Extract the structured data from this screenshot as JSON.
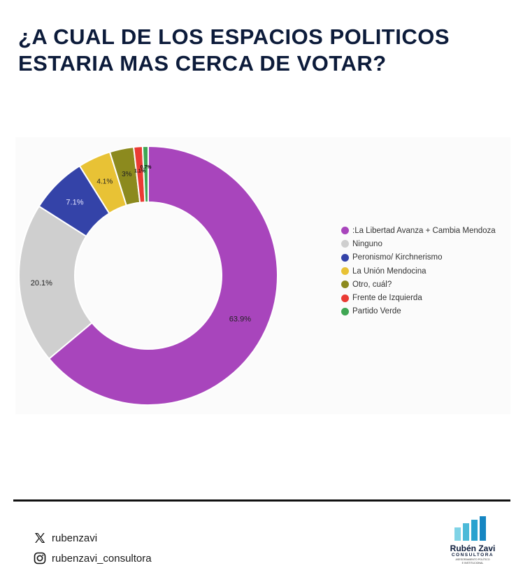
{
  "title_line1": "¿A CUAL DE LOS ESPACIOS POLITICOS",
  "title_line2": "ESTARIA MAS CERCA DE VOTAR?",
  "chart_data": {
    "type": "pie",
    "donut": true,
    "title": "¿A CUAL DE LOS ESPACIOS POLITICOS ESTARIA MAS CERCA DE VOTAR?",
    "legend_position": "right",
    "categories": [
      ":La Libertad Avanza + Cambia Mendoza",
      "Ninguno",
      "Peronismo/ Kirchnerismo",
      "La Unión Mendocina",
      "Otro, cuál?",
      "Frente de Izquierda",
      "Partido Verde"
    ],
    "values": [
      63.9,
      20.1,
      7.1,
      4.1,
      3,
      1.1,
      0.7
    ],
    "labels": [
      "63.9%",
      "20.1%",
      "7.1%",
      "4.1%",
      "3%",
      "1.1%",
      "0.7%"
    ],
    "colors": [
      "#a845bc",
      "#cfcfcf",
      "#3443a8",
      "#e8c235",
      "#8c8a1e",
      "#ea3b34",
      "#3fa653"
    ],
    "label_colors": [
      "#222222",
      "#222222",
      "#e6e6ff",
      "#222222",
      "#222222",
      "#111111",
      "#111111"
    ]
  },
  "footer": {
    "x_handle": "rubenzavi",
    "instagram_handle": "rubenzavi_consultora",
    "x_icon": "x-logo-icon",
    "instagram_icon": "instagram-icon"
  },
  "logo": {
    "name": "Rubén Zavi",
    "sub": "CONSULTORA",
    "tagline_1": "ASESORAMIENTO POLÍTICO",
    "tagline_2": "E INSTITUCIONAL",
    "colors": [
      "#7fd3e6",
      "#4cbad8",
      "#2aa2cf",
      "#1686c2"
    ]
  }
}
